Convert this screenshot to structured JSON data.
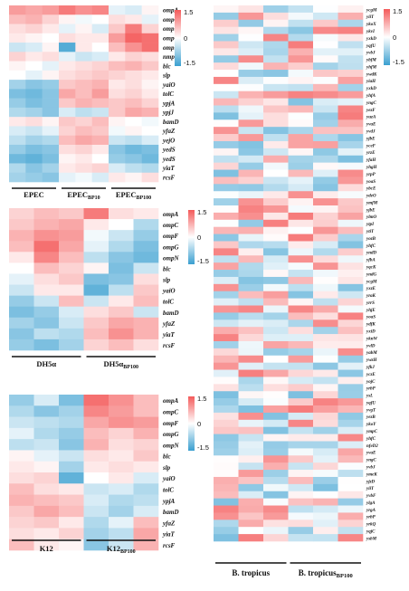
{
  "colors": {
    "low": "#3a9fd0",
    "mid": "#ffffff",
    "high": "#f45a5a"
  },
  "chart_data": [
    {
      "type": "heatmap",
      "rows": [
        "ompA",
        "ompC",
        "ompF",
        "ompG",
        "ompN",
        "nmpC",
        "blc",
        "slp",
        "yaiO",
        "tolC",
        "ypjA",
        "ypjJ",
        "bamD",
        "yfaZ",
        "yejO",
        "yedS",
        "yedS",
        "yiaT",
        "rcsF"
      ],
      "groups": [
        {
          "label": "EPEC",
          "sub": ""
        },
        {
          "label": "EPEC",
          "sub": "BP10"
        },
        {
          "label": "EPEC",
          "sub": "BP100"
        }
      ],
      "colorbar": {
        "ticks": [
          "1.5",
          "0",
          "-1.5"
        ],
        "range": [
          -1.5,
          1.5
        ]
      },
      "values": [
        [
          0.9,
          0.8,
          0.9,
          1.2,
          1.0,
          1.1,
          -0.2,
          -0.3,
          0.1
        ],
        [
          0.6,
          0.7,
          0.4,
          0.1,
          -0.1,
          0.0,
          0.3,
          0.2,
          -0.2
        ],
        [
          0.3,
          0.4,
          0.2,
          -0.2,
          0.1,
          -0.3,
          0.5,
          1.2,
          0.4
        ],
        [
          0.2,
          0.1,
          0.0,
          0.3,
          0.2,
          0.2,
          0.9,
          1.4,
          1.3
        ],
        [
          -0.4,
          -0.3,
          0.1,
          -1.3,
          0.2,
          0.0,
          0.6,
          1.0,
          1.3
        ],
        [
          0.4,
          0.2,
          0.3,
          -0.2,
          -0.4,
          -0.3,
          0.2,
          0.4,
          0.3
        ],
        [
          0.1,
          0.0,
          -0.2,
          0.2,
          0.3,
          0.4,
          0.6,
          0.7,
          0.5
        ],
        [
          0.0,
          -0.2,
          0.1,
          0.3,
          0.4,
          0.5,
          0.4,
          0.3,
          0.2
        ],
        [
          -0.7,
          -0.9,
          -0.8,
          0.5,
          0.6,
          0.7,
          0.2,
          0.3,
          0.1
        ],
        [
          -1.0,
          -1.1,
          -0.9,
          0.8,
          0.6,
          0.9,
          0.3,
          0.4,
          0.2
        ],
        [
          -0.8,
          -1.0,
          -0.9,
          0.5,
          0.7,
          0.6,
          0.5,
          0.6,
          0.4
        ],
        [
          -0.6,
          -0.7,
          -0.9,
          -0.3,
          -0.5,
          -0.4,
          0.5,
          0.8,
          0.7
        ],
        [
          0.2,
          0.3,
          0.1,
          0.5,
          0.4,
          0.6,
          0.1,
          0.0,
          -0.1
        ],
        [
          -0.3,
          -0.4,
          -0.2,
          0.4,
          0.6,
          0.5,
          -0.1,
          0.1,
          0.0
        ],
        [
          -0.5,
          -0.7,
          -0.6,
          0.6,
          0.8,
          0.7,
          -0.4,
          -0.5,
          -0.3
        ],
        [
          -0.8,
          -1.0,
          -0.9,
          0.3,
          0.4,
          0.2,
          -0.9,
          -1.1,
          -1.0
        ],
        [
          -1.1,
          -1.2,
          -1.0,
          0.1,
          0.2,
          0.0,
          -0.8,
          -0.9,
          -1.1
        ],
        [
          -0.6,
          -0.9,
          -0.7,
          0.2,
          0.3,
          0.4,
          -0.3,
          -0.5,
          -0.6
        ],
        [
          -0.7,
          -0.8,
          -0.9,
          -0.2,
          -0.1,
          -0.3,
          0.2,
          0.1,
          0.3
        ]
      ]
    },
    {
      "type": "heatmap",
      "rows": [
        "ompA",
        "ompC",
        "ompF",
        "ompG",
        "ompN",
        "blc",
        "slp",
        "yaiO",
        "tolC",
        "bamD",
        "yfaZ",
        "yiaT",
        "rcsF"
      ],
      "groups": [
        {
          "label": "DH5α",
          "sub": ""
        },
        {
          "label": "DH5α",
          "sub": "BP100"
        }
      ],
      "colorbar": {
        "ticks": [
          "1.5",
          "0",
          "-1.5"
        ],
        "range": [
          -1.5,
          1.5
        ]
      },
      "values": [
        [
          0.4,
          0.6,
          0.5,
          1.2,
          0.3,
          0.2
        ],
        [
          0.5,
          0.7,
          0.8,
          0.2,
          0.0,
          -0.6
        ],
        [
          0.7,
          1.0,
          0.9,
          -0.1,
          -0.4,
          -0.8
        ],
        [
          0.6,
          1.3,
          0.8,
          -0.2,
          -0.6,
          -1.0
        ],
        [
          0.2,
          1.1,
          0.6,
          -0.5,
          -0.9,
          -1.1
        ],
        [
          0.0,
          0.6,
          0.4,
          0.1,
          -1.0,
          -0.4
        ],
        [
          -0.2,
          0.3,
          0.5,
          -1.0,
          -0.9,
          0.3
        ],
        [
          -0.4,
          0.2,
          0.2,
          -1.2,
          -0.5,
          0.5
        ],
        [
          -0.8,
          -0.4,
          0.6,
          -0.4,
          0.2,
          0.6
        ],
        [
          -1.0,
          -0.8,
          -0.3,
          0.3,
          0.5,
          -0.4
        ],
        [
          -0.7,
          -0.9,
          -0.4,
          0.5,
          0.8,
          0.7
        ],
        [
          -0.9,
          -0.5,
          -0.6,
          0.6,
          1.0,
          0.7
        ],
        [
          -0.8,
          -1.0,
          -0.7,
          0.4,
          0.6,
          0.3
        ]
      ]
    },
    {
      "type": "heatmap",
      "rows": [
        "ompA",
        "ompC",
        "ompF",
        "ompG",
        "ompN",
        "blc",
        "slp",
        "yaiO",
        "tolC",
        "ypjA",
        "bamD",
        "yfaZ",
        "yiaT",
        "rcsF"
      ],
      "groups": [
        {
          "label": "K12",
          "sub": ""
        },
        {
          "label": "K12",
          "sub": "BP100"
        }
      ],
      "colorbar": {
        "ticks": [
          "1.5",
          "0",
          "-1.5"
        ],
        "range": [
          -1.5,
          1.5
        ]
      },
      "values": [
        [
          -0.8,
          -0.3,
          -1.0,
          1.3,
          1.0,
          0.6
        ],
        [
          -0.6,
          -0.9,
          -0.7,
          1.1,
          0.9,
          0.6
        ],
        [
          -0.4,
          -0.5,
          -0.6,
          0.8,
          1.0,
          0.9
        ],
        [
          -0.2,
          -0.6,
          -0.8,
          0.6,
          0.4,
          0.7
        ],
        [
          -0.5,
          -0.4,
          -0.9,
          0.7,
          0.3,
          0.4
        ],
        [
          0.1,
          -0.2,
          -0.4,
          0.3,
          0.2,
          0.5
        ],
        [
          0.2,
          0.1,
          -0.7,
          0.2,
          0.3,
          0.2
        ],
        [
          0.3,
          0.4,
          -1.2,
          0.0,
          0.2,
          -0.3
        ],
        [
          0.6,
          0.3,
          0.2,
          -0.4,
          -0.3,
          -0.6
        ],
        [
          0.7,
          0.6,
          0.5,
          -0.3,
          -0.6,
          -0.5
        ],
        [
          0.5,
          0.8,
          0.6,
          -0.4,
          -0.7,
          -0.3
        ],
        [
          0.4,
          0.5,
          0.2,
          -0.6,
          -0.2,
          0.6
        ],
        [
          0.3,
          0.2,
          0.4,
          -0.7,
          -0.5,
          0.8
        ],
        [
          0.6,
          0.2,
          0.1,
          -0.9,
          -0.4,
          0.7
        ]
      ]
    },
    {
      "type": "heatmap",
      "rows": [
        "ycgM",
        "yiiT",
        "ykoX",
        "ykvI",
        "yxkD",
        "yqfU",
        "yvbJ",
        "ybfM",
        "yhfM",
        "ywdK",
        "yiaH",
        "yxkD",
        "yhfA",
        "yngC",
        "yezF",
        "yuzA",
        "yvaE",
        "yvdJ",
        "yjbE",
        "yceF",
        "yrzE",
        "yfaH",
        "yhgH",
        "yrpP",
        "yoaS",
        "ybcE",
        "ydeO",
        "ymfM",
        "yjbE",
        "ylmO",
        "ytpI",
        "ytiT",
        "yozB",
        "yhfC",
        "yndD",
        "yfbA",
        "yqcK",
        "yndG",
        "ycgM",
        "yxzE",
        "yraK",
        "yrrS",
        "yhjE",
        "yoaS",
        "ydfK",
        "yxiD",
        "yknW",
        "yvlD",
        "yabM",
        "ywzH",
        "yfkJ",
        "yczE",
        "yojC",
        "yrbP",
        "ysL",
        "yqfU",
        "yvgT",
        "yezB",
        "ykoY",
        "ympC",
        "yhfC",
        "nfeD2",
        "yvaE",
        "yngC",
        "yvbJ",
        "ymeK",
        "yjzD",
        "yiiT",
        "yvbF",
        "ylgA",
        "yrgA",
        "yrbP",
        "yrkQ",
        "yqjC",
        "ysbM"
      ],
      "groups": [
        {
          "label": "B. tropicus",
          "sub": ""
        },
        {
          "label": "B. tropicus",
          "sub": "BP100"
        }
      ],
      "colorbar": {
        "ticks": [
          "1.5",
          "0",
          "-1.5"
        ],
        "range": [
          -1.5,
          1.5
        ]
      }
    }
  ]
}
